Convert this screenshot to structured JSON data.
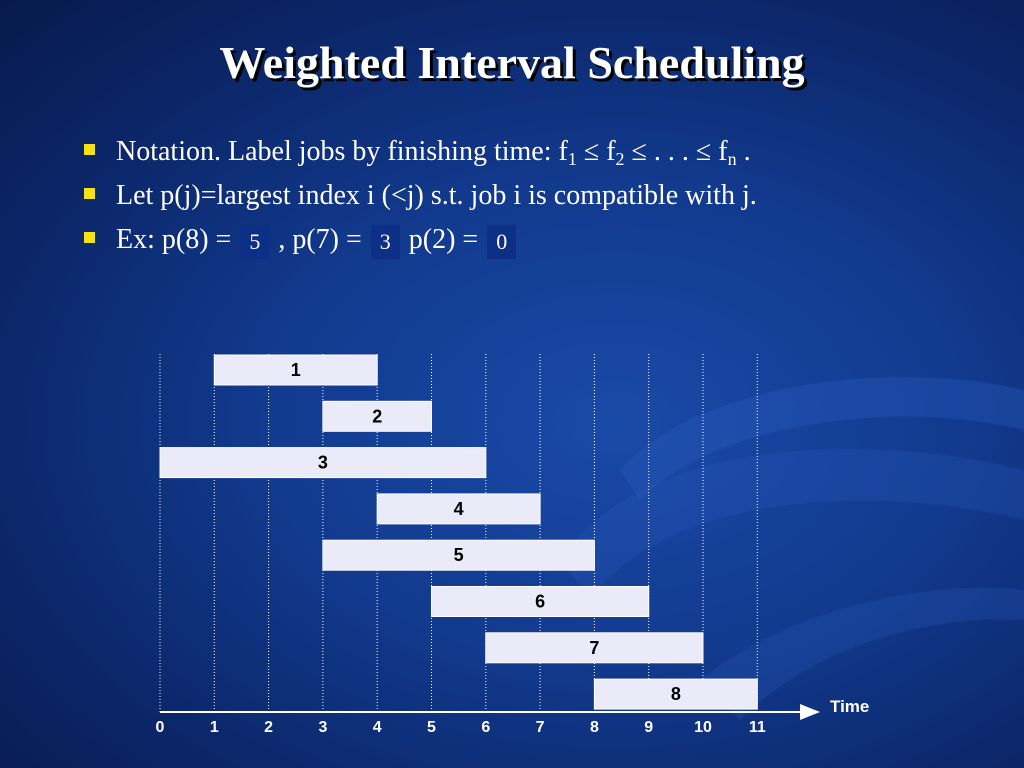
{
  "title": "Weighted Interval Scheduling",
  "bullets": {
    "notation": {
      "prefix": "Notation.  Label jobs by finishing time:  f",
      "sub1": "1",
      "leq1": " ≤  f",
      "sub2": "2",
      "mid": " ≤ . . . ≤ f",
      "subn": "n",
      "end": " ."
    },
    "def": "Let p(j)=largest index i (<j) s.t. job i is compatible with j.",
    "ex": {
      "prefix": "Ex:  p(8) = ",
      "ans8": "5",
      "mid1": " , p(7) = ",
      "ans7": "3",
      "mid2": " p(2) = ",
      "ans2": "0"
    }
  },
  "colors": {
    "bullet": "#f4e314",
    "bar_fill": "#eaeaf8",
    "bar_stroke": "#ffffff"
  },
  "chart_data": {
    "type": "gantt",
    "xlabel": "Time",
    "xlim": [
      0,
      11
    ],
    "ticks": [
      "0",
      "1",
      "2",
      "3",
      "4",
      "5",
      "6",
      "7",
      "8",
      "9",
      "10",
      "11"
    ],
    "jobs": [
      {
        "label": "1",
        "start": 1,
        "finish": 4
      },
      {
        "label": "2",
        "start": 3,
        "finish": 5
      },
      {
        "label": "3",
        "start": 0,
        "finish": 6
      },
      {
        "label": "4",
        "start": 4,
        "finish": 7
      },
      {
        "label": "5",
        "start": 3,
        "finish": 8
      },
      {
        "label": "6",
        "start": 5,
        "finish": 9
      },
      {
        "label": "7",
        "start": 6,
        "finish": 10
      },
      {
        "label": "8",
        "start": 8,
        "finish": 11
      }
    ]
  }
}
